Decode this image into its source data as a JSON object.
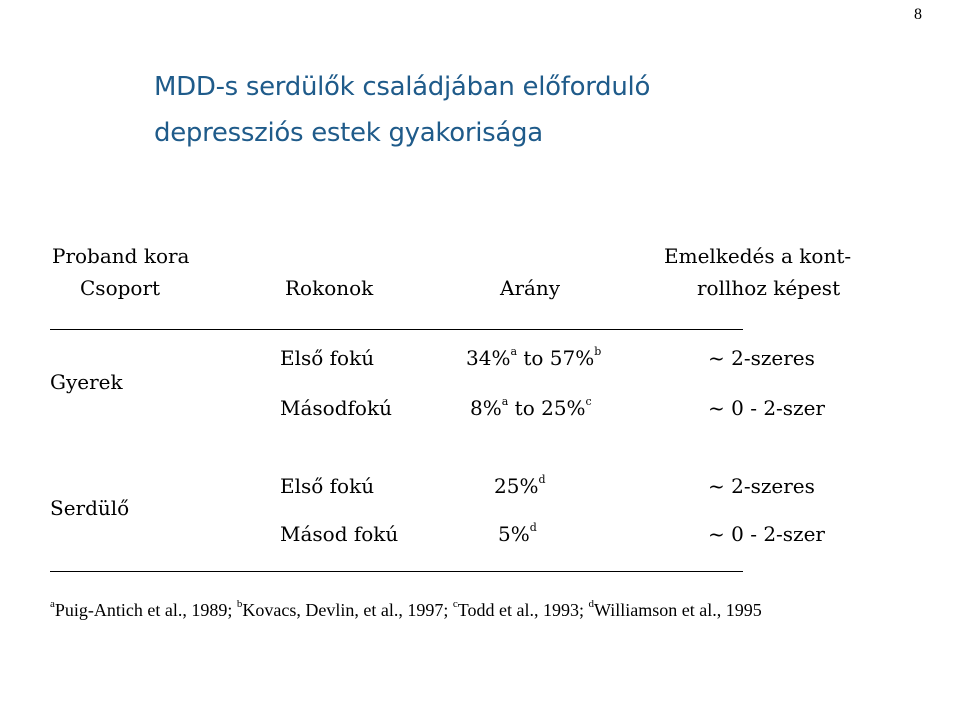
{
  "page_number": "8",
  "title": {
    "line1": "MDD-s serdülők családjában előforduló",
    "line2": "depressziós estek gyakorisága"
  },
  "table": {
    "headers": {
      "proband_line1": "Proband kora",
      "proband_line2": "Csoport",
      "relatives": "Rokonok",
      "ratio": "Arány",
      "increase_line1": "Emelkedés a kont-",
      "increase_line2": "rollhoz képest"
    },
    "groups": [
      {
        "label": "Gyerek",
        "rows": [
          {
            "relatives": "Első fokú",
            "ratio_a": "34%",
            "ratio_a_sup": "a",
            "ratio_mid": " to 57%",
            "ratio_b_sup": "b",
            "increase": "~ 2-szeres"
          },
          {
            "relatives": "Másodfokú",
            "ratio_a": "8%",
            "ratio_a_sup": "a",
            "ratio_mid": " to 25%",
            "ratio_b_sup": "c",
            "increase": "~ 0 - 2-szer"
          }
        ]
      },
      {
        "label": "Serdülő",
        "rows": [
          {
            "relatives": "Első fokú",
            "ratio": "25%",
            "ratio_sup": "d",
            "increase": "~ 2-szeres"
          },
          {
            "relatives": "Másod fokú",
            "ratio": "5%",
            "ratio_sup": "d",
            "increase": "~ 0 - 2-szer"
          }
        ]
      }
    ]
  },
  "footnote": {
    "a_sup": "a",
    "a_text": "Puig-Antich et al., 1989; ",
    "b_sup": "b",
    "b_text": "Kovacs, Devlin, et al., 1997; ",
    "c_sup": "c",
    "c_text": "Todd et al., 1993; ",
    "d_sup": "d",
    "d_text": "Williamson  et al., 1995"
  }
}
